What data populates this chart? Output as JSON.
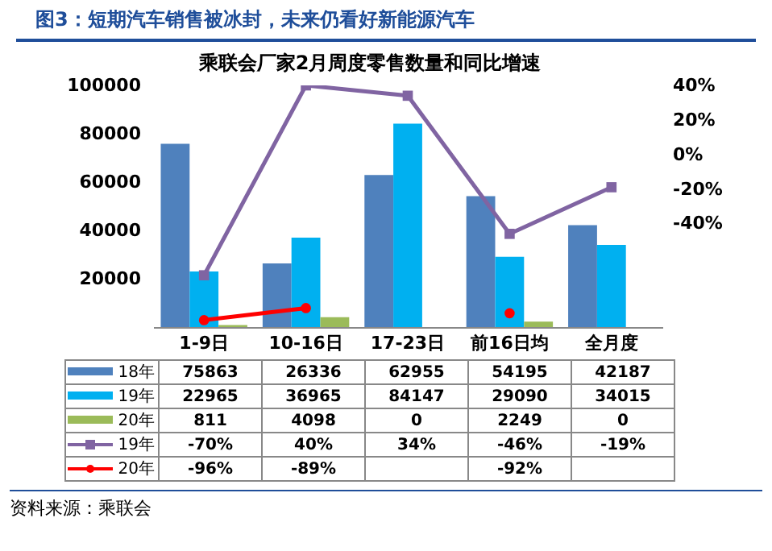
{
  "chart_data": {
    "type": "bar",
    "title": "图3：短期汽车销售被冰封，未来仍看好新能源汽车",
    "subtitle": "乘联会厂家2月周度零售数量和同比增速",
    "categories": [
      "1-9日",
      "10-16日",
      "17-23日",
      "前16日均",
      "全月度"
    ],
    "series": [
      {
        "name": "18年",
        "color": "#4f81bd",
        "values": [
          75863,
          26336,
          62955,
          54195,
          42187
        ],
        "value_labels": [
          "75863",
          "26336",
          "62955",
          "54195",
          "42187"
        ]
      },
      {
        "name": "19年",
        "color": "#00b0f0",
        "values": [
          22965,
          36965,
          84147,
          29090,
          34015
        ],
        "value_labels": [
          "22965",
          "36965",
          "84147",
          "29090",
          "34015"
        ]
      },
      {
        "name": "20年",
        "color": "#9bbb59",
        "values": [
          811,
          4098,
          0,
          2249,
          0
        ],
        "value_labels": [
          "811",
          "4098",
          "0",
          "2249",
          "0"
        ]
      },
      {
        "name": "19年",
        "type": "line",
        "axis": "y2",
        "marker": "square",
        "color": "#8064a2",
        "values": [
          -70,
          40,
          34,
          -46,
          -19
        ],
        "value_labels": [
          "-70%",
          "40%",
          "34%",
          "-46%",
          "-19%"
        ]
      },
      {
        "name": "20年",
        "type": "line",
        "axis": "y2",
        "marker": "circle",
        "color": "#ff0000",
        "values": [
          -96,
          -89,
          null,
          -92,
          null
        ],
        "value_labels": [
          "-96%",
          "-89%",
          null,
          "-92%",
          null
        ]
      }
    ],
    "ylim": [
      0,
      100000
    ],
    "yticks": [
      20000,
      40000,
      60000,
      80000,
      100000
    ],
    "y2lim": [
      -100,
      40
    ],
    "y2ticks": [
      {
        "value": -40,
        "label": "-40%"
      },
      {
        "value": -20,
        "label": "-20%"
      },
      {
        "value": 0,
        "label": "0%"
      },
      {
        "value": 20,
        "label": "20%"
      },
      {
        "value": 40,
        "label": "40%"
      }
    ],
    "legend": "bottom",
    "grid": false,
    "line_style": "solid",
    "annotations": [
      "资料来源：乘联会"
    ]
  }
}
